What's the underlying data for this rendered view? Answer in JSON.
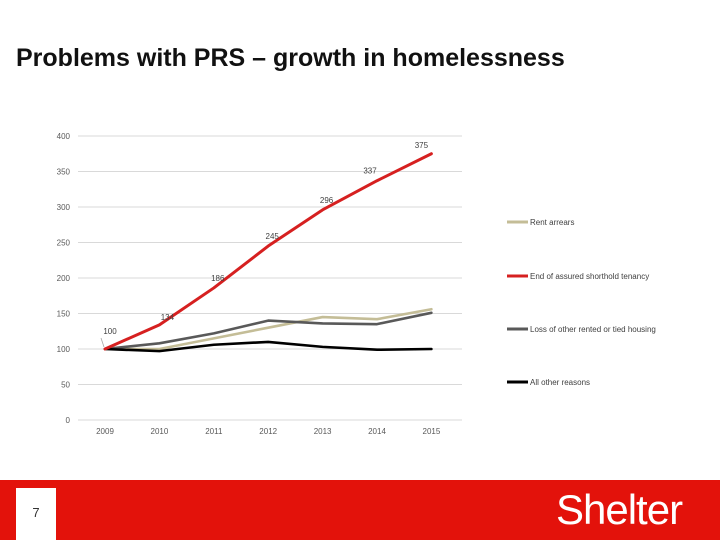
{
  "slide": {
    "title": "Problems with PRS – growth in homelessness",
    "page_number": "7",
    "brand": "Shelter"
  },
  "colors": {
    "footer": "#e3120b",
    "rent_arrears": "#c4bd97",
    "end_of_ast": "#d62020",
    "loss_other": "#595959",
    "all_other": "#000000"
  },
  "chart_data": {
    "type": "line",
    "title": "",
    "xlabel": "",
    "ylabel": "",
    "categories": [
      "2009",
      "2010",
      "2011",
      "2012",
      "2013",
      "2014",
      "2015"
    ],
    "ylim": [
      0,
      400
    ],
    "yticks": [
      "0",
      "50",
      "100",
      "150",
      "200",
      "250",
      "300",
      "350",
      "400"
    ],
    "grid": true,
    "legend_position": "right",
    "series": [
      {
        "name": "Rent arrears",
        "color": "#c4bd97",
        "values": [
          100,
          100,
          115,
          130,
          145,
          142,
          156
        ]
      },
      {
        "name": "End of assured shorthold tenancy",
        "color": "#d62020",
        "values": [
          100,
          134,
          186,
          245,
          296,
          337,
          375
        ],
        "labels": [
          "",
          "134",
          "186",
          "245",
          "296",
          "337",
          "375"
        ]
      },
      {
        "name": "Loss of other rented or tied housing",
        "color": "#595959",
        "values": [
          100,
          108,
          122,
          140,
          136,
          135,
          151
        ]
      },
      {
        "name": "All other reasons",
        "color": "#000000",
        "values": [
          100,
          97,
          106,
          110,
          103,
          99,
          100
        ]
      }
    ],
    "annotations": [
      {
        "text": "100",
        "x": "2009",
        "y": 100
      }
    ]
  }
}
